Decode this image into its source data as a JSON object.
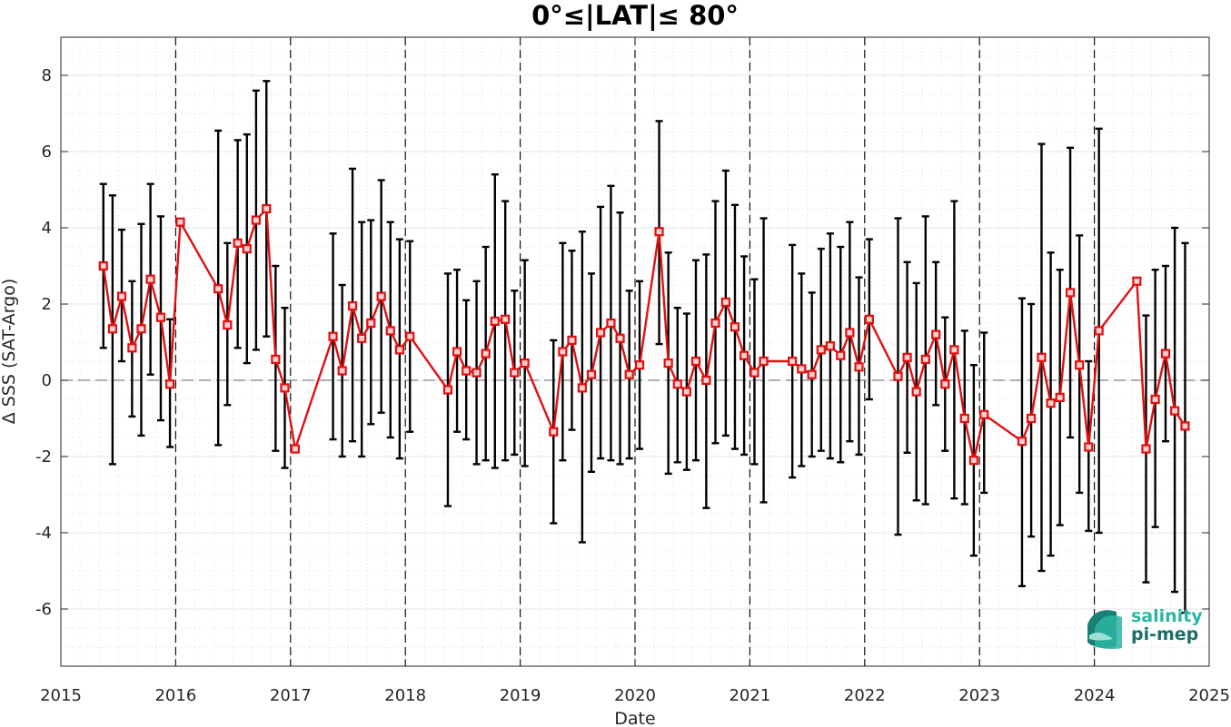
{
  "chart_data": {
    "type": "scatter",
    "title": "0°≤|LAT|≤ 80°",
    "xlabel": "Date",
    "ylabel": "Δ SSS (SAT-Argo)",
    "xlim": [
      2015,
      2025
    ],
    "ylim": [
      -7.5,
      9
    ],
    "xticks": [
      2015,
      2016,
      2017,
      2018,
      2019,
      2020,
      2021,
      2022,
      2023,
      2024,
      2025
    ],
    "yticks": [
      -6,
      -4,
      -2,
      0,
      2,
      4,
      6,
      8
    ],
    "grid": true,
    "year_separators": [
      2016,
      2017,
      2018,
      2019,
      2020,
      2021,
      2022,
      2023,
      2024
    ],
    "reference_line_y": 0,
    "colors": {
      "line": "#e01010",
      "marker": "#e01010",
      "errorbar": "#000000",
      "reference": "#808080"
    },
    "x": [
      2015.37,
      2015.45,
      2015.53,
      2015.62,
      2015.7,
      2015.78,
      2015.87,
      2015.95,
      2016.04,
      2016.37,
      2016.45,
      2016.54,
      2016.62,
      2016.7,
      2016.79,
      2016.87,
      2016.95,
      2017.04,
      2017.37,
      2017.45,
      2017.54,
      2017.62,
      2017.7,
      2017.79,
      2017.87,
      2017.95,
      2018.04,
      2018.37,
      2018.45,
      2018.53,
      2018.62,
      2018.7,
      2018.78,
      2018.87,
      2018.95,
      2019.04,
      2019.29,
      2019.37,
      2019.45,
      2019.54,
      2019.62,
      2019.7,
      2019.79,
      2019.87,
      2019.95,
      2020.04,
      2020.21,
      2020.29,
      2020.37,
      2020.45,
      2020.53,
      2020.62,
      2020.7,
      2020.79,
      2020.87,
      2020.95,
      2021.04,
      2021.12,
      2021.37,
      2021.45,
      2021.54,
      2021.62,
      2021.7,
      2021.79,
      2021.87,
      2021.95,
      2022.04,
      2022.29,
      2022.37,
      2022.45,
      2022.53,
      2022.62,
      2022.7,
      2022.78,
      2022.87,
      2022.95,
      2023.04,
      2023.37,
      2023.45,
      2023.54,
      2023.62,
      2023.7,
      2023.79,
      2023.87,
      2023.95,
      2024.04,
      2024.37,
      2024.45,
      2024.53,
      2024.62,
      2024.7,
      2024.79
    ],
    "y": [
      3.0,
      1.35,
      2.2,
      0.85,
      1.35,
      2.65,
      1.65,
      -0.1,
      4.15,
      2.4,
      1.45,
      3.6,
      3.45,
      4.2,
      4.5,
      0.55,
      -0.2,
      -1.8,
      1.15,
      0.25,
      1.95,
      1.1,
      1.5,
      2.2,
      1.3,
      0.8,
      1.15,
      -0.25,
      0.75,
      0.25,
      0.2,
      0.7,
      1.55,
      1.6,
      0.2,
      0.45,
      -1.35,
      0.75,
      1.05,
      -0.2,
      0.15,
      1.25,
      1.5,
      1.1,
      0.15,
      0.4,
      3.9,
      0.45,
      -0.1,
      -0.3,
      0.5,
      0.0,
      1.5,
      2.05,
      1.4,
      0.65,
      0.2,
      0.5,
      0.5,
      0.3,
      0.15,
      0.8,
      0.9,
      0.65,
      1.25,
      0.35,
      1.6,
      0.1,
      0.6,
      -0.3,
      0.55,
      1.2,
      -0.1,
      0.8,
      -1.0,
      -2.1,
      -0.9,
      -1.6,
      -1.0,
      0.6,
      -0.6,
      -0.45,
      2.3,
      0.4,
      -1.75,
      1.3,
      2.6,
      -1.8,
      -0.5,
      0.7,
      -0.8,
      -1.2
    ],
    "err_high": [
      5.15,
      4.85,
      3.95,
      2.6,
      4.1,
      5.15,
      4.3,
      1.6,
      4.15,
      6.55,
      3.6,
      6.3,
      6.45,
      7.6,
      7.85,
      3.0,
      1.9,
      -1.8,
      3.85,
      2.5,
      5.55,
      4.15,
      4.2,
      5.25,
      4.15,
      3.7,
      3.65,
      2.8,
      2.9,
      2.1,
      2.6,
      3.5,
      5.4,
      4.7,
      2.35,
      3.15,
      1.05,
      3.6,
      3.4,
      3.9,
      2.8,
      4.55,
      5.1,
      4.4,
      2.35,
      2.6,
      6.8,
      3.35,
      1.9,
      1.75,
      3.15,
      3.3,
      4.7,
      5.5,
      4.6,
      3.25,
      2.65,
      4.25,
      3.55,
      2.8,
      2.3,
      3.45,
      3.85,
      3.5,
      4.15,
      2.7,
      3.7,
      4.25,
      3.1,
      2.55,
      4.3,
      3.1,
      1.65,
      4.7,
      1.3,
      0.4,
      1.25,
      2.15,
      2.0,
      6.2,
      3.35,
      2.9,
      6.1,
      3.8,
      0.5,
      6.6,
      2.6,
      1.7,
      2.9,
      3.0,
      4.0,
      3.6
    ],
    "err_low": [
      0.85,
      -2.2,
      0.5,
      -0.95,
      -1.45,
      0.15,
      -1.05,
      -1.75,
      4.15,
      -1.7,
      -0.65,
      0.85,
      0.45,
      0.8,
      1.15,
      -1.85,
      -2.3,
      -1.8,
      -1.55,
      -2.0,
      -1.6,
      -2.0,
      -1.15,
      -0.85,
      -1.5,
      -2.05,
      -1.35,
      -3.3,
      -1.35,
      -1.55,
      -2.2,
      -2.1,
      -2.3,
      -2.1,
      -1.95,
      -2.25,
      -3.75,
      -2.1,
      -1.3,
      -4.25,
      -2.4,
      -2.05,
      -2.1,
      -2.2,
      -2.05,
      -1.8,
      0.95,
      -2.45,
      -2.15,
      -2.35,
      -2.1,
      -3.35,
      -1.65,
      -1.45,
      -1.8,
      -1.95,
      -2.2,
      -3.2,
      -2.55,
      -2.25,
      -2.0,
      -1.85,
      -2.05,
      -2.15,
      -1.6,
      -1.95,
      -0.5,
      -4.05,
      -1.9,
      -3.15,
      -3.25,
      -0.65,
      -1.85,
      -3.1,
      -3.25,
      -4.6,
      -2.95,
      -5.4,
      -4.1,
      -5.0,
      -4.6,
      -3.8,
      -1.5,
      -2.95,
      -3.95,
      -4.0,
      2.6,
      -5.3,
      -3.85,
      -1.6,
      -5.55,
      -6.1
    ]
  },
  "logo": {
    "line1": "salinity",
    "line2": "pi-mep"
  }
}
